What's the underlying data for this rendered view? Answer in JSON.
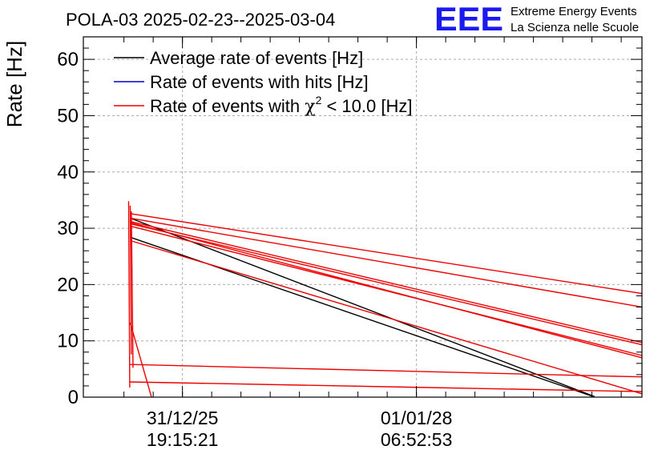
{
  "chart_data": {
    "type": "line",
    "title": "POLA-03 2025-02-23--2025-03-04",
    "ylabel": "Rate [Hz]",
    "xlabel": "",
    "ylim": [
      0,
      64
    ],
    "xlim": [
      0,
      100
    ],
    "y_ticks": [
      0,
      10,
      20,
      30,
      40,
      50,
      60
    ],
    "x_ticks": [
      {
        "x": 17.74,
        "date": "31/12/25",
        "time": "19:15:21"
      },
      {
        "x": 59.63,
        "date": "01/01/28",
        "time": "06:52:53"
      }
    ],
    "grid": true,
    "legend_position": "top-left",
    "legend": [
      {
        "label": "Average rate of events [Hz]",
        "color": "#000000"
      },
      {
        "label": "Rate of events with hits [Hz]",
        "color": "#0000cc"
      },
      {
        "label_prefix": "Rate of events with ",
        "chi": "χ",
        "sup": "2",
        "label_suffix": " < 10.0 [Hz]",
        "color": "#ee0000"
      }
    ],
    "series": [
      {
        "name": "Average rate of events [Hz]",
        "color": "#000000",
        "segments": [
          [
            [
              8.4,
              28.4
            ],
            [
              91.0,
              0.2
            ]
          ],
          [
            [
              8.4,
              31.8
            ],
            [
              91.5,
              0.1
            ]
          ]
        ]
      },
      {
        "name": "Rate of events with hits [Hz]",
        "color": "#0000cc",
        "segments": []
      },
      {
        "name": "Rate of events with χ2 < 10.0 [Hz]",
        "color": "#ee0000",
        "segments": [
          [
            [
              8.4,
              32.6
            ],
            [
              100,
              18.4
            ]
          ],
          [
            [
              8.4,
              31.8
            ],
            [
              100,
              16.0
            ]
          ],
          [
            [
              8.4,
              31.2
            ],
            [
              100,
              9.7
            ]
          ],
          [
            [
              8.4,
              30.8
            ],
            [
              100,
              9.3
            ]
          ],
          [
            [
              8.4,
              30.4
            ],
            [
              100,
              7.4
            ]
          ],
          [
            [
              8.4,
              31.0
            ],
            [
              100,
              7.0
            ]
          ],
          [
            [
              8.4,
              27.8
            ],
            [
              100,
              0.6
            ]
          ],
          [
            [
              8.4,
              5.8
            ],
            [
              100,
              3.6
            ]
          ],
          [
            [
              8.4,
              2.7
            ],
            [
              100,
              1.0
            ]
          ],
          [
            [
              8.4,
              13.2
            ],
            [
              12.2,
              0
            ]
          ],
          [
            [
              8.1,
              34.8
            ],
            [
              8.3,
              1.7
            ]
          ],
          [
            [
              8.4,
              34.0
            ],
            [
              8.6,
              7.6
            ]
          ],
          [
            [
              8.6,
              33.0
            ],
            [
              8.9,
              5.2
            ]
          ]
        ]
      }
    ]
  },
  "logo": {
    "mark": "EEE",
    "line1": "Extreme Energy Events",
    "line2": "La Scienza nelle Scuole",
    "color": "#1a1aee"
  }
}
